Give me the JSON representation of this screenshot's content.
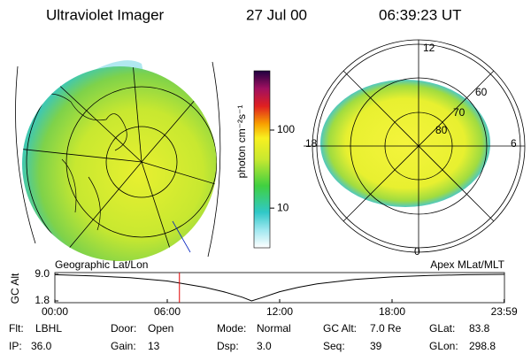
{
  "header": {
    "title": "Ultraviolet Imager",
    "date": "27 Jul 00",
    "time": "06:39:23 UT"
  },
  "polar_plot": {
    "labels": [
      "12",
      "60",
      "70",
      "80",
      "18",
      "6",
      "0"
    ]
  },
  "colorbar": {
    "label": "photon cm⁻²s⁻¹",
    "log_scale": true,
    "ylim": [
      3.1,
      575
    ],
    "yticks": [
      10,
      100
    ]
  },
  "altitude_plot": {
    "title_left": "Geographic Lat/Lon",
    "title_right": "Apex MLat/MLT",
    "y_label": "GC Alt",
    "ylim": [
      1.8,
      9.0
    ],
    "yticks": [
      1.8,
      {
        "value": 9.0,
        "label": "9.0"
      }
    ],
    "xlim": [
      0,
      24
    ],
    "xticks": [
      {
        "value": 0,
        "label": "00:00"
      },
      {
        "value": 6,
        "label": "06:00"
      },
      {
        "value": 12,
        "label": "12:00"
      },
      {
        "value": 18,
        "label": "18:00"
      },
      {
        "value": 23.983,
        "label": "23:59"
      }
    ],
    "x": [
      0,
      2,
      4,
      6,
      8,
      9,
      10,
      10.5,
      11,
      12,
      13,
      14,
      16,
      18,
      20,
      22,
      24
    ],
    "values": [
      8.9,
      8.6,
      8.1,
      7.2,
      5.5,
      4.3,
      2.8,
      1.8,
      2.6,
      4.3,
      5.5,
      6.4,
      7.6,
      8.3,
      8.7,
      8.9,
      9.0
    ],
    "current_time": 6.65,
    "current_color": "#e00000"
  },
  "footer": {
    "rows": [
      [
        [
          "Flt:",
          "LBHL"
        ],
        [
          "Door:",
          "Open"
        ],
        [
          "Mode:",
          "Normal"
        ],
        [
          "GC Alt:",
          "7.0 Re"
        ],
        [
          "GLat:",
          "83.8"
        ]
      ],
      [
        [
          "IP:",
          "36.0"
        ],
        [
          "Gain:",
          "13"
        ],
        [
          "Dsp:",
          "3.0"
        ],
        [
          "Seq:",
          "39"
        ],
        [
          "GLon:",
          "298.8"
        ]
      ]
    ]
  }
}
